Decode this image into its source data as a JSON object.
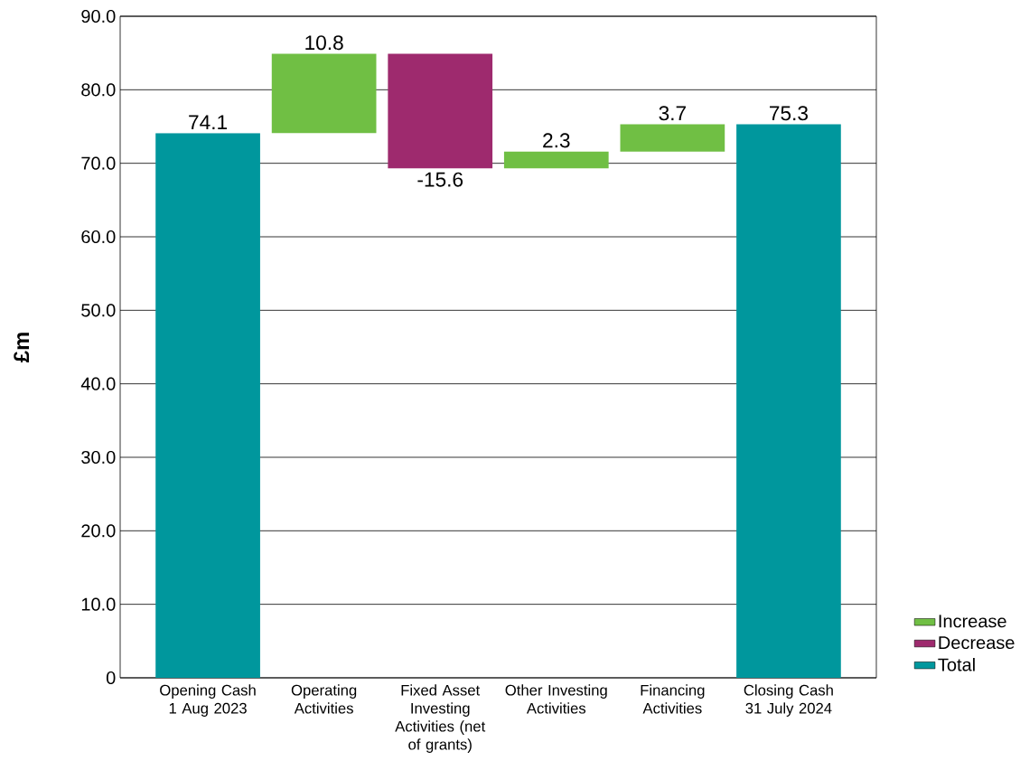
{
  "chart_data": {
    "type": "bar",
    "ylabel": "£m",
    "categories": [
      "Opening Cash 1 Aug 2023",
      "Operating Activities",
      "Fixed Asset Investing Activities (net of grants)",
      "Other Investing Activities",
      "Financing Activities",
      "Closing Cash 31 July 2024"
    ],
    "series": [
      {
        "name": "Increase",
        "color": "#70bf44",
        "values": [
          null,
          10.8,
          null,
          2.3,
          3.7,
          null
        ],
        "base": [
          null,
          74.1,
          null,
          69.3,
          71.6,
          null
        ]
      },
      {
        "name": "Decrease",
        "color": "#9e2a6e",
        "values": [
          null,
          null,
          -15.6,
          null,
          null,
          null
        ],
        "base": [
          null,
          null,
          84.9,
          null,
          null,
          null
        ]
      },
      {
        "name": "Total",
        "color": "#00979d",
        "values": [
          74.1,
          null,
          null,
          null,
          null,
          75.3
        ],
        "base": [
          0,
          null,
          null,
          null,
          null,
          0
        ]
      }
    ],
    "ylim": [
      0,
      90
    ],
    "yticks": [
      0,
      {
        "value": 10,
        "label": "10.0"
      },
      {
        "value": 20,
        "label": "20.0"
      },
      {
        "value": 30,
        "label": "30.0"
      },
      {
        "value": 40,
        "label": "40.0"
      },
      {
        "value": 50,
        "label": "50.0"
      },
      {
        "value": 60,
        "label": "60.0"
      },
      {
        "value": 70,
        "label": "70.0"
      },
      {
        "value": 80,
        "label": "80.0"
      },
      {
        "value": 90,
        "label": "90.0"
      }
    ],
    "grid": "y",
    "legend": "bottom right",
    "data_labels": true
  }
}
